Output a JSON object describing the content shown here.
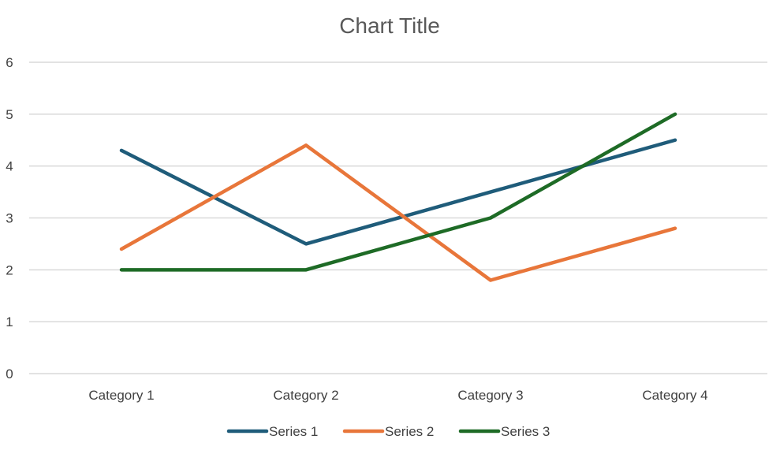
{
  "chart_data": {
    "type": "line",
    "title": "Chart Title",
    "xlabel": "",
    "ylabel": "",
    "categories": [
      "Category 1",
      "Category 2",
      "Category 3",
      "Category 4"
    ],
    "ylim": [
      0,
      6
    ],
    "yticks": [
      "0",
      "1",
      "2",
      "3",
      "4",
      "5",
      "6"
    ],
    "grid": true,
    "legend": "bottom",
    "series": [
      {
        "name": "Series 1",
        "color": "#1f5c7a",
        "values": [
          4.3,
          2.5,
          3.5,
          4.5
        ]
      },
      {
        "name": "Series 2",
        "color": "#e8763a",
        "values": [
          2.4,
          4.4,
          1.8,
          2.8
        ]
      },
      {
        "name": "Series 3",
        "color": "#1e6b26",
        "values": [
          2.0,
          2.0,
          3.0,
          5.0
        ]
      }
    ]
  }
}
